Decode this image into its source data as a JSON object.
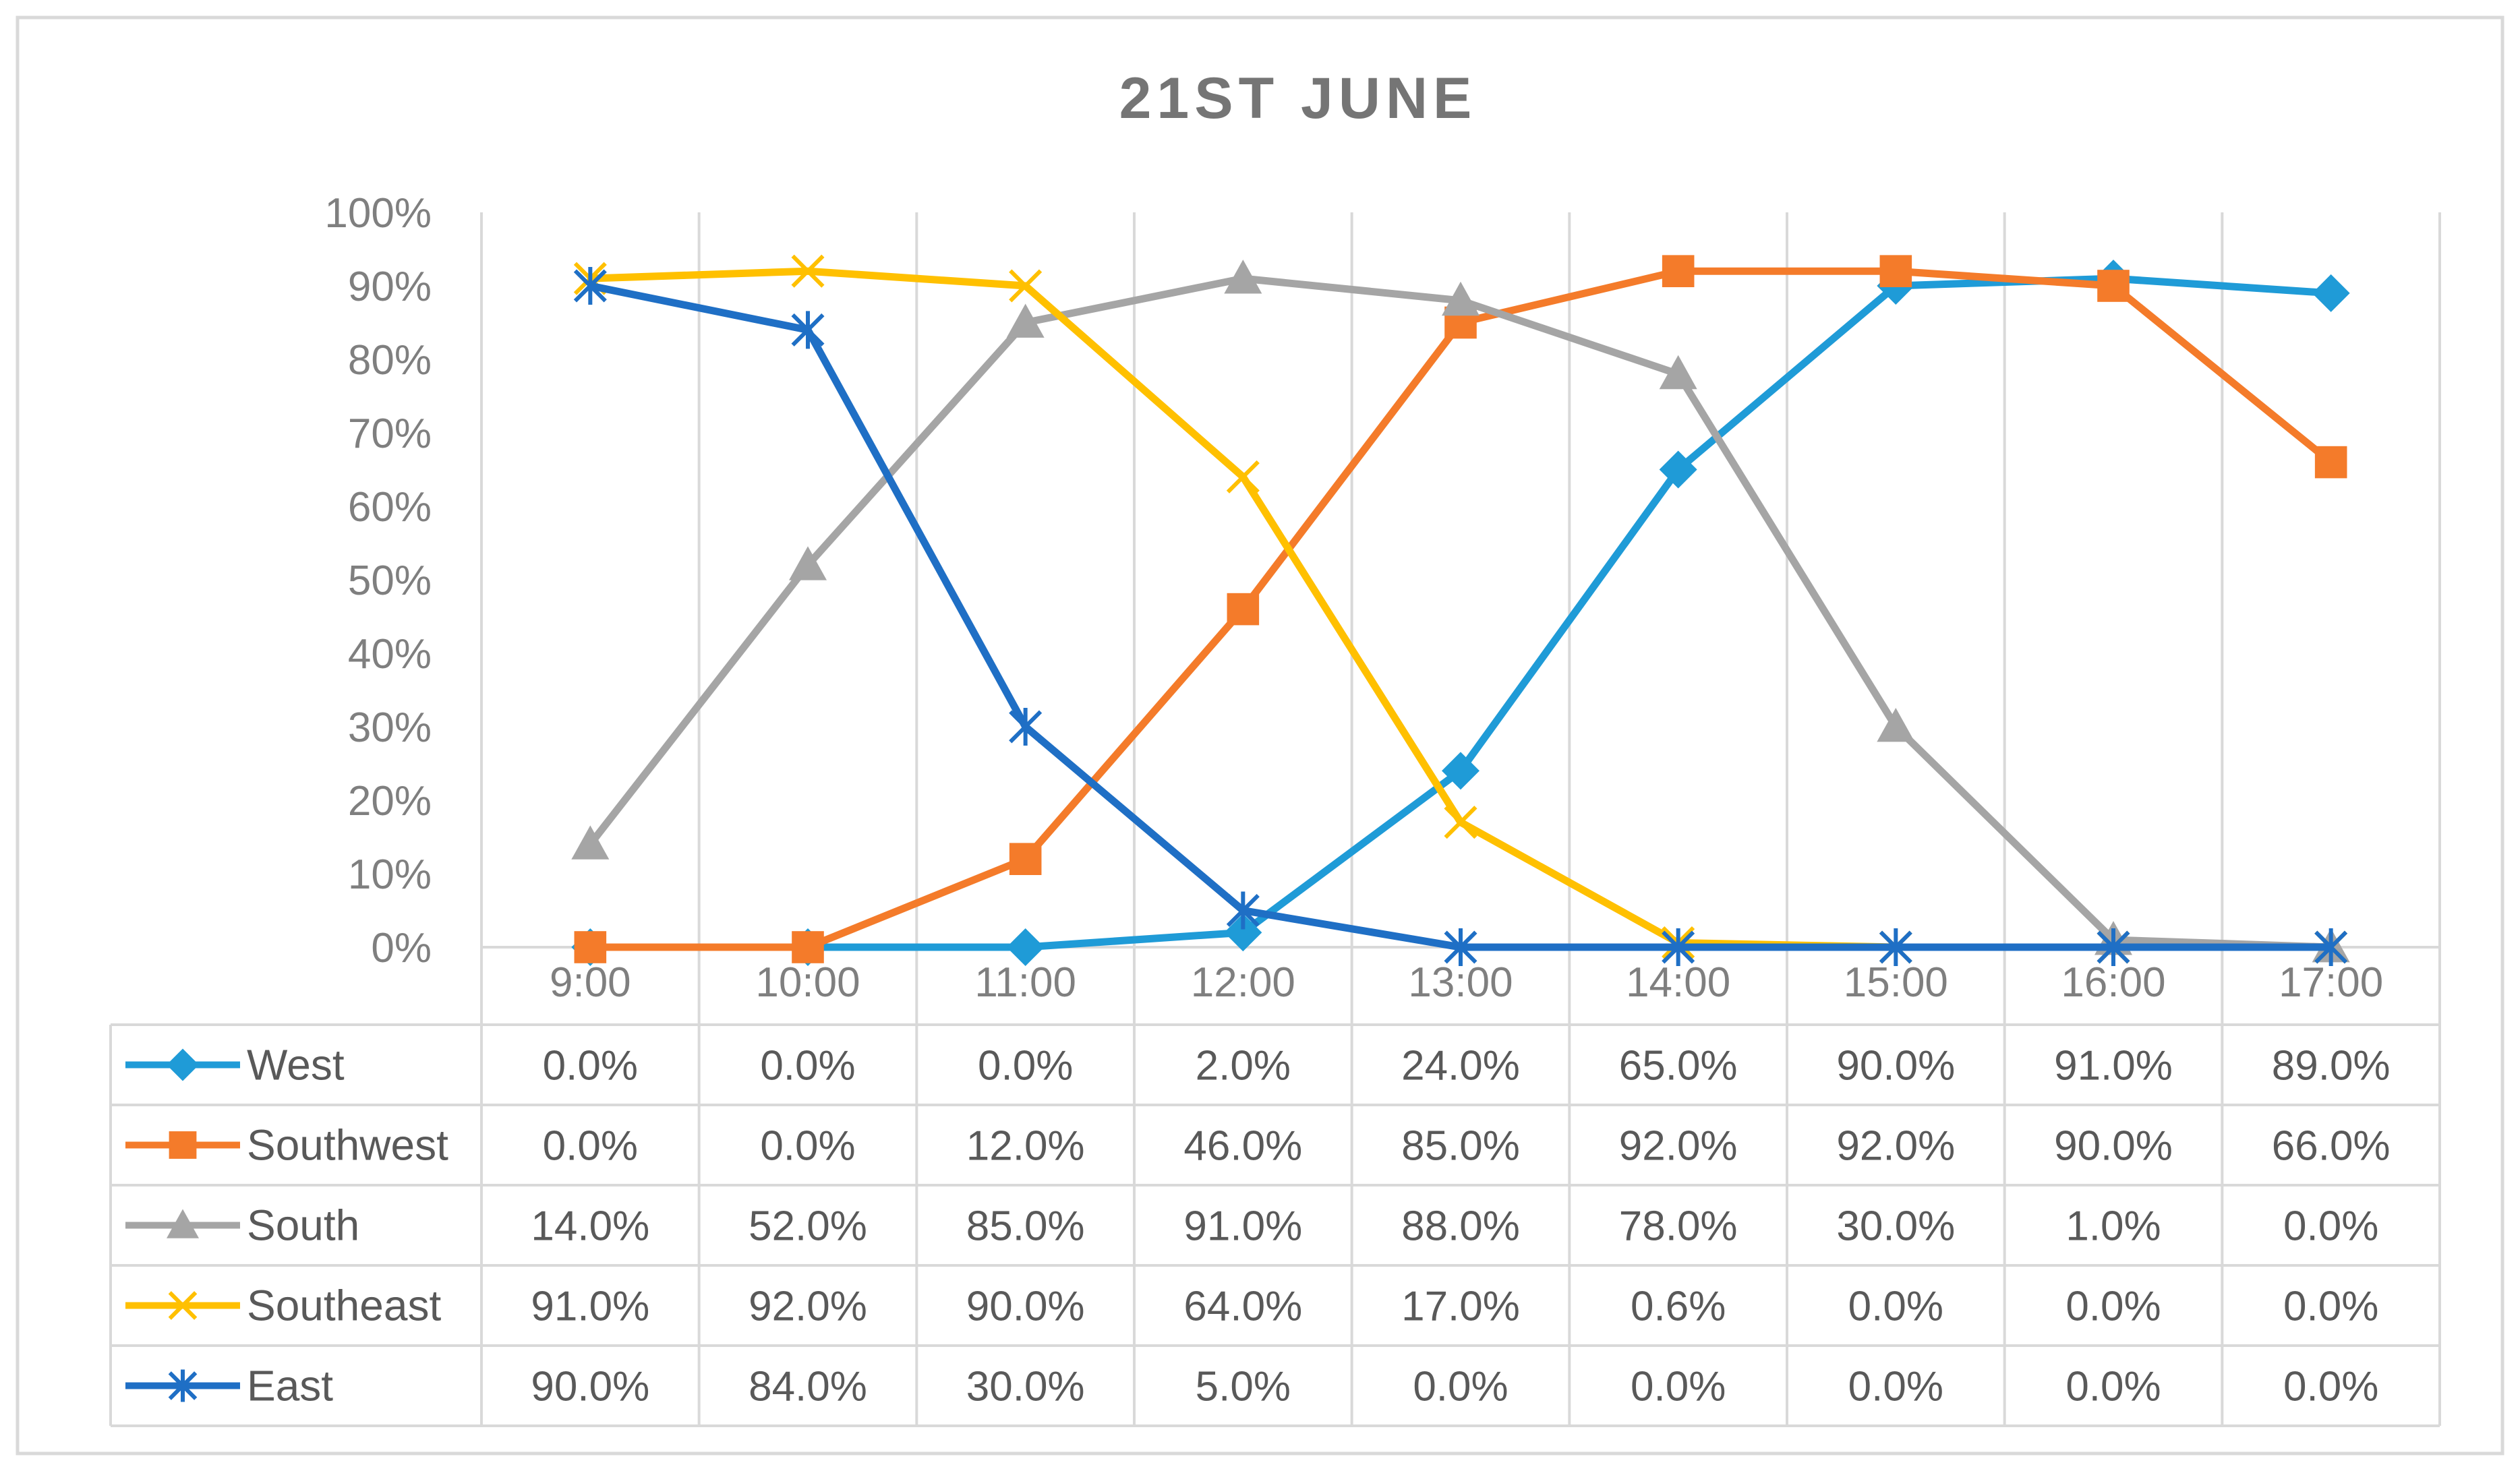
{
  "chart_data": {
    "type": "line",
    "title": "21ST JUNE",
    "categories": [
      "9:00",
      "10:00",
      "11:00",
      "12:00",
      "13:00",
      "14:00",
      "15:00",
      "16:00",
      "17:00"
    ],
    "y_ticks": [
      "0%",
      "10%",
      "20%",
      "30%",
      "40%",
      "50%",
      "60%",
      "70%",
      "80%",
      "90%",
      "100%"
    ],
    "ylim": [
      0,
      100
    ],
    "grid": "vertical",
    "legend": "data-table-below",
    "series": [
      {
        "name": "West",
        "marker": "diamond",
        "color": "#1f9bd7",
        "values": [
          0,
          0,
          0,
          2,
          24,
          65,
          90,
          91,
          89
        ],
        "labels": [
          "0.0%",
          "0.0%",
          "0.0%",
          "2.0%",
          "24.0%",
          "65.0%",
          "90.0%",
          "91.0%",
          "89.0%"
        ]
      },
      {
        "name": "Southwest",
        "marker": "square",
        "color": "#f47b2a",
        "values": [
          0,
          0,
          12,
          46,
          85,
          92,
          92,
          90,
          66
        ],
        "labels": [
          "0.0%",
          "0.0%",
          "12.0%",
          "46.0%",
          "85.0%",
          "92.0%",
          "92.0%",
          "90.0%",
          "66.0%"
        ]
      },
      {
        "name": "South",
        "marker": "triangle",
        "color": "#a5a5a5",
        "values": [
          14,
          52,
          85,
          91,
          88,
          78,
          30,
          1,
          0
        ],
        "labels": [
          "14.0%",
          "52.0%",
          "85.0%",
          "91.0%",
          "88.0%",
          "78.0%",
          "30.0%",
          "1.0%",
          "0.0%"
        ]
      },
      {
        "name": "Southeast",
        "marker": "x",
        "color": "#ffc000",
        "values": [
          91,
          92,
          90,
          64,
          17,
          0.6,
          0,
          0,
          0
        ],
        "labels": [
          "91.0%",
          "92.0%",
          "90.0%",
          "64.0%",
          "17.0%",
          "0.6%",
          "0.0%",
          "0.0%",
          "0.0%"
        ]
      },
      {
        "name": "East",
        "marker": "star",
        "color": "#1f6fc5",
        "values": [
          90,
          84,
          30,
          5,
          0,
          0,
          0,
          0,
          0
        ],
        "labels": [
          "90.0%",
          "84.0%",
          "30.0%",
          "5.0%",
          "0.0%",
          "0.0%",
          "0.0%",
          "0.0%",
          "0.0%"
        ]
      }
    ]
  }
}
